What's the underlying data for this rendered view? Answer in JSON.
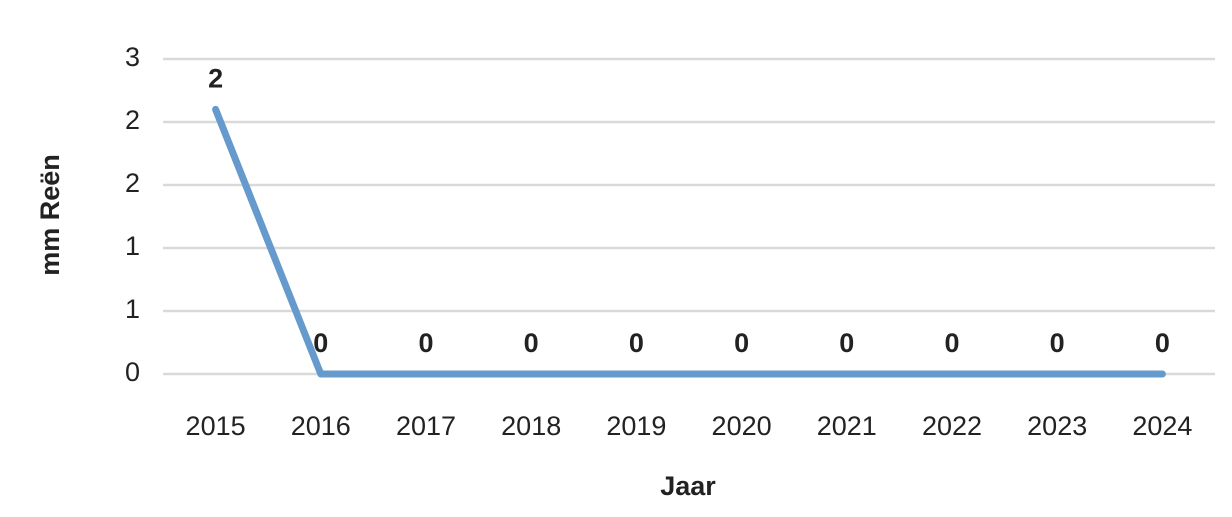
{
  "chart_data": {
    "type": "line",
    "x_label": "Jaar",
    "y_label": "mm Reën",
    "categories": [
      "2015",
      "2016",
      "2017",
      "2018",
      "2019",
      "2020",
      "2021",
      "2022",
      "2023",
      "2024"
    ],
    "series": [
      {
        "color": "#6699cc",
        "values": [
          2.1,
          0,
          0,
          0,
          0,
          0,
          0,
          0,
          0,
          0
        ],
        "value_labels": [
          "2",
          "0",
          "0",
          "0",
          "0",
          "0",
          "0",
          "0",
          "0",
          "0"
        ]
      }
    ],
    "ylim": [
      0,
      2.5
    ],
    "yticks": [
      0,
      {
        "value": 0.5,
        "label": "1"
      },
      1,
      {
        "value": 1.5,
        "label": "2"
      },
      2,
      {
        "value": 2.5,
        "label": "3"
      }
    ],
    "grid": true
  }
}
